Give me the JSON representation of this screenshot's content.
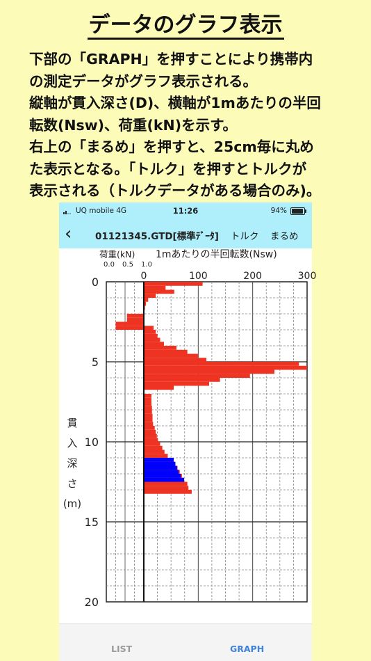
{
  "page": {
    "title": "データのグラフ表示",
    "description": "下部の「GRAPH」を押すことにより携帯内\nの測定データがグラフ表示される。\n縦軸が貫入深さ(D)、横軸が1mあたりの半回\n転数(Nsw)、荷重(kN)を示す。\n右上の「まるめ」を押すと、25cm毎に丸め\nた表示となる。「トルク」を押すとトルクが\n表示される（トルクデータがある場合のみ)。"
  },
  "status_bar": {
    "carrier": "UQ mobile  4G",
    "time": "11:26",
    "battery": "94%"
  },
  "nav": {
    "back_icon": "chevron-left-icon",
    "file_title": "01121345.GTD[標準ﾃﾞｰﾀ]",
    "torque_label": "トルク",
    "round_label": "まるめ"
  },
  "chart_data": {
    "type": "bar",
    "orientation": "horizontal",
    "y_axis": {
      "label_chars": [
        "貫",
        "入",
        "深",
        "さ",
        "(m)"
      ],
      "ylim": [
        0,
        20
      ],
      "ticks": [
        "0",
        "5",
        "10",
        "15",
        "20"
      ]
    },
    "nsw_axis": {
      "label": "1mあたりの半回転数(Nsw)",
      "xlim": [
        0,
        300
      ],
      "ticks": [
        "0",
        "100",
        "200",
        "300"
      ]
    },
    "load_axis": {
      "label": "荷重(kN)",
      "xlim": [
        0,
        1.0
      ],
      "ticks": [
        "0.0",
        "0.5",
        "1.0"
      ]
    },
    "colors": {
      "nsw": "#ee3322",
      "blue": "#0000ff"
    },
    "nsw_series": [
      {
        "d": 0.0,
        "v": 108
      },
      {
        "d": 0.25,
        "v": 40
      },
      {
        "d": 0.5,
        "v": 56
      },
      {
        "d": 0.75,
        "v": 22
      },
      {
        "d": 1.0,
        "v": 8
      },
      {
        "d": 1.25,
        "v": 4
      },
      {
        "d": 1.5,
        "v": 2
      },
      {
        "d": 1.75,
        "v": 0
      },
      {
        "d": 2.0,
        "v": 0
      },
      {
        "d": 2.25,
        "v": 0
      },
      {
        "d": 2.5,
        "v": 0
      },
      {
        "d": 2.75,
        "v": 18
      },
      {
        "d": 3.0,
        "v": 22
      },
      {
        "d": 3.25,
        "v": 25
      },
      {
        "d": 3.5,
        "v": 30
      },
      {
        "d": 3.75,
        "v": 37
      },
      {
        "d": 4.0,
        "v": 60
      },
      {
        "d": 4.25,
        "v": 80
      },
      {
        "d": 4.5,
        "v": 100
      },
      {
        "d": 4.75,
        "v": 115
      },
      {
        "d": 5.0,
        "v": 285
      },
      {
        "d": 5.25,
        "v": 300
      },
      {
        "d": 5.5,
        "v": 240
      },
      {
        "d": 5.75,
        "v": 195
      },
      {
        "d": 6.0,
        "v": 140
      },
      {
        "d": 6.25,
        "v": 120
      },
      {
        "d": 6.5,
        "v": 55
      },
      {
        "d": 6.75,
        "v": 0
      },
      {
        "d": 7.0,
        "v": 14
      },
      {
        "d": 7.25,
        "v": 14
      },
      {
        "d": 7.5,
        "v": 14
      },
      {
        "d": 7.75,
        "v": 15
      },
      {
        "d": 8.0,
        "v": 15
      },
      {
        "d": 8.25,
        "v": 16
      },
      {
        "d": 8.5,
        "v": 16
      },
      {
        "d": 8.75,
        "v": 17
      },
      {
        "d": 9.0,
        "v": 20
      },
      {
        "d": 9.25,
        "v": 22
      },
      {
        "d": 9.5,
        "v": 24
      },
      {
        "d": 9.75,
        "v": 26
      },
      {
        "d": 10.0,
        "v": 30
      },
      {
        "d": 10.25,
        "v": 34
      },
      {
        "d": 10.5,
        "v": 38
      },
      {
        "d": 10.75,
        "v": 44
      },
      {
        "d": 11.0,
        "v": 54
      },
      {
        "d": 11.25,
        "v": 58
      },
      {
        "d": 11.5,
        "v": 62
      },
      {
        "d": 11.75,
        "v": 66
      },
      {
        "d": 12.0,
        "v": 70
      },
      {
        "d": 12.25,
        "v": 74
      },
      {
        "d": 12.5,
        "v": 80
      },
      {
        "d": 12.75,
        "v": 82
      },
      {
        "d": 13.0,
        "v": 88
      }
    ],
    "blue_series": [
      {
        "d": 11.0,
        "v": 55
      },
      {
        "d": 11.25,
        "v": 58
      },
      {
        "d": 11.5,
        "v": 61
      },
      {
        "d": 11.75,
        "v": 64
      },
      {
        "d": 12.0,
        "v": 68
      },
      {
        "d": 12.25,
        "v": 74
      }
    ],
    "load_series": [
      {
        "d": 2.0,
        "v": 0.55
      },
      {
        "d": 2.25,
        "v": 0.55
      },
      {
        "d": 2.5,
        "v": 0.25
      },
      {
        "d": 2.75,
        "v": 0.25
      }
    ],
    "step_m": 0.25
  },
  "tabs": {
    "list": "LIST",
    "graph": "GRAPH"
  }
}
